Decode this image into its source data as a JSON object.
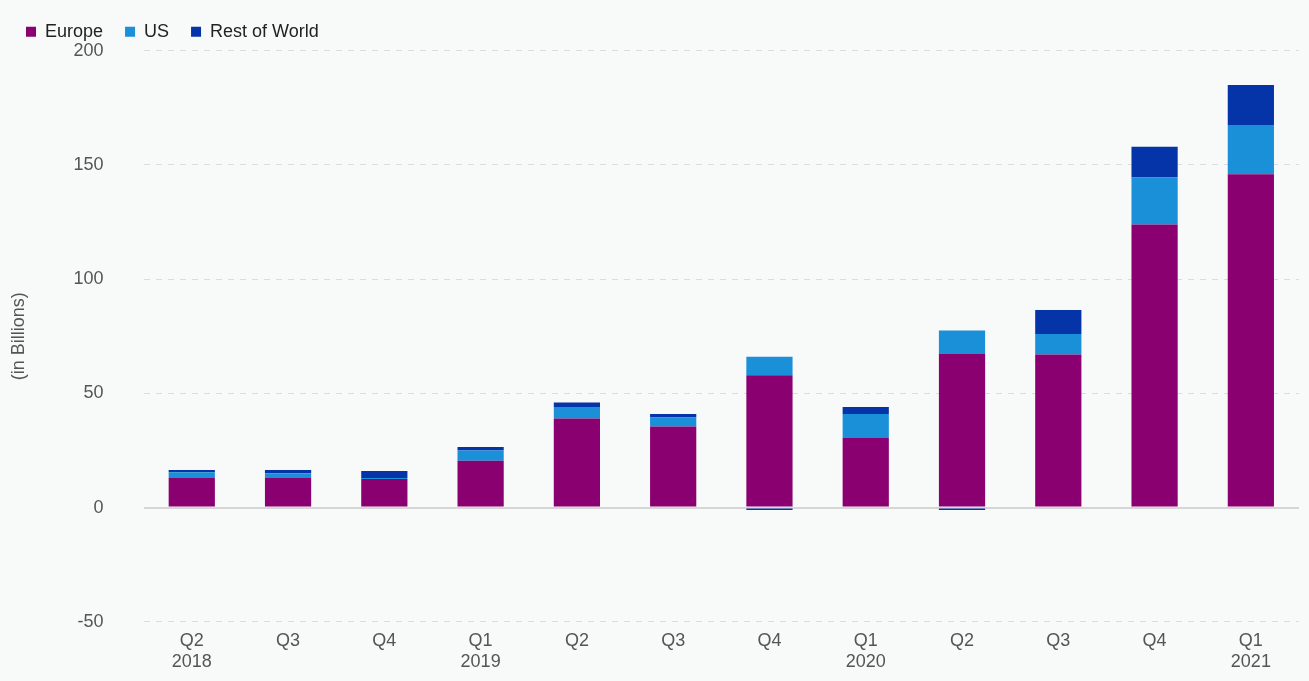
{
  "chart_data": {
    "type": "bar",
    "stacked": true,
    "ylabel": "(in Billions)",
    "categories": [
      "Q2\n2018",
      "Q3",
      "Q4",
      "Q1\n2019",
      "Q2",
      "Q3",
      "Q4",
      "Q1\n2020",
      "Q2",
      "Q3",
      "Q4",
      "Q1\n2021"
    ],
    "series": [
      {
        "name": "Europe",
        "color": "#8a0070",
        "values": [
          13,
          13,
          12.5,
          20.5,
          39,
          35.5,
          58,
          30.5,
          67.5,
          67,
          124,
          146
        ]
      },
      {
        "name": "US",
        "color": "#1a90d8",
        "values": [
          2.5,
          2,
          0.5,
          4.5,
          5,
          4,
          8,
          10.5,
          10,
          9,
          20.5,
          21.5
        ]
      },
      {
        "name": "Rest of World",
        "color": "#0533a8",
        "values": [
          1,
          1.5,
          3,
          1.5,
          2,
          1.5,
          -1,
          3,
          -1,
          10.5,
          13.5,
          17.5
        ]
      }
    ],
    "ylim": [
      -50,
      200
    ],
    "yticks": [
      -50,
      0,
      50,
      100,
      150,
      200
    ],
    "grid": "y",
    "legend": "top left"
  }
}
